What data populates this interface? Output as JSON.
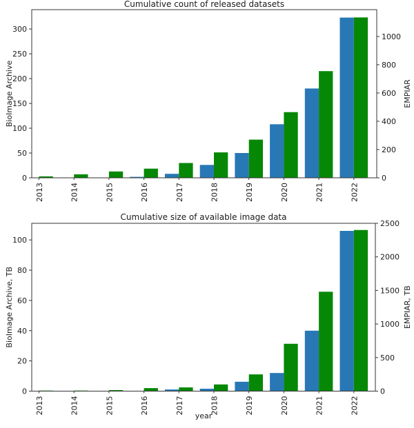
{
  "figure": {
    "background": "#ffffff",
    "text_color": "#1a1a1a",
    "axis_color": "#333333"
  },
  "chart_data": [
    {
      "type": "bar",
      "title": "Cumulative count of released datasets",
      "categories": [
        "2013",
        "2014",
        "2015",
        "2016",
        "2017",
        "2018",
        "2019",
        "2020",
        "2021",
        "2022"
      ],
      "xlabel": "",
      "grid": false,
      "legend": "none",
      "series": [
        {
          "name": "BioImage Archive",
          "axis": "left",
          "color": "#2878b5",
          "values": [
            0,
            0,
            0,
            2,
            8,
            26,
            50,
            108,
            180,
            323
          ]
        },
        {
          "name": "EMPIAR",
          "axis": "right",
          "color": "#068806",
          "values": [
            10,
            25,
            45,
            65,
            105,
            180,
            270,
            465,
            755,
            1135
          ]
        }
      ],
      "left_axis": {
        "label": "BioImage Archive",
        "ticks": [
          0,
          50,
          100,
          150,
          200,
          250,
          300
        ],
        "ylim": [
          0,
          339
        ]
      },
      "right_axis": {
        "label": "EMPIAR",
        "ticks": [
          0,
          200,
          400,
          600,
          800,
          1000
        ],
        "ylim": [
          0,
          1190
        ]
      }
    },
    {
      "type": "bar",
      "title": "Cumulative size of available image data",
      "categories": [
        "2013",
        "2014",
        "2015",
        "2016",
        "2017",
        "2018",
        "2019",
        "2020",
        "2021",
        "2022"
      ],
      "xlabel": "year",
      "grid": false,
      "legend": "none",
      "series": [
        {
          "name": "BioImage Archive, TB",
          "axis": "left",
          "color": "#2878b5",
          "values": [
            0,
            0,
            0,
            0,
            1.1,
            1.6,
            6.2,
            12,
            40,
            106
          ]
        },
        {
          "name": "EMPIAR, TB",
          "axis": "right",
          "color": "#068806",
          "values": [
            5,
            8,
            15,
            45,
            55,
            100,
            250,
            705,
            1480,
            2400
          ]
        }
      ],
      "left_axis": {
        "label": "BioImage Archive, TB",
        "ticks": [
          0,
          20,
          40,
          60,
          80,
          100
        ],
        "ylim": [
          0,
          111
        ]
      },
      "right_axis": {
        "label": "EMPIAR, TB",
        "ticks": [
          0,
          500,
          1000,
          1500,
          2000,
          2500
        ],
        "ylim": [
          0,
          2500
        ]
      }
    }
  ]
}
